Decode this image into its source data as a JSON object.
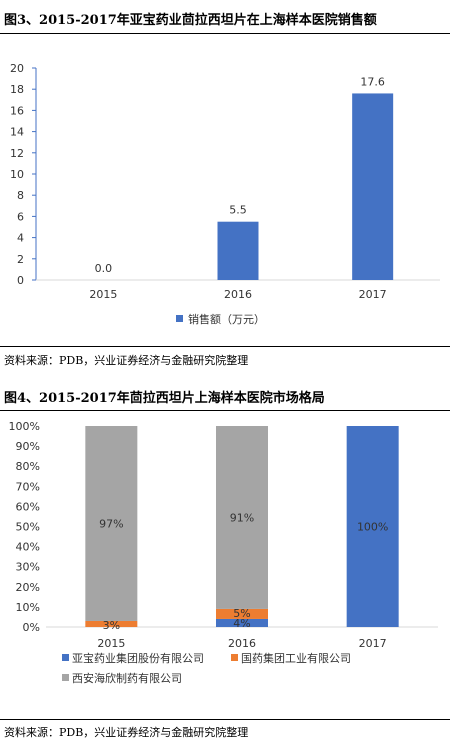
{
  "figure3": {
    "title": "图3、2015-2017年亚宝药业茴拉西坦片在上海样本医院销售额",
    "source": "资料来源：PDB，兴业证券经济与金融研究院整理"
  },
  "figure4": {
    "title": "图4、2015-2017年茴拉西坦片上海样本医院市场格局",
    "source": "资料来源：PDB，兴业证券经济与金融研究院整理"
  },
  "chart_data": [
    {
      "type": "bar",
      "title": "",
      "categories": [
        "2015",
        "2016",
        "2017"
      ],
      "series": [
        {
          "name": "销售额（万元）",
          "values": [
            0.0,
            5.5,
            17.6
          ],
          "color": "#4472C4"
        }
      ],
      "data_labels": [
        "0.0",
        "5.5",
        "17.6"
      ],
      "ylim": [
        0,
        20
      ],
      "yticks": [
        0,
        2,
        4,
        6,
        8,
        10,
        12,
        14,
        16,
        18,
        20
      ],
      "grid": false,
      "legend": "bottom"
    },
    {
      "type": "bar",
      "stacked": true,
      "title": "",
      "categories": [
        "2015",
        "2016",
        "2017"
      ],
      "series": [
        {
          "name": "亚宝药业集团股份有限公司",
          "values": [
            0,
            4,
            100
          ],
          "labels": [
            "",
            "4%",
            "100%"
          ],
          "color": "#4472C4"
        },
        {
          "name": "国药集团工业有限公司",
          "values": [
            3,
            5,
            0
          ],
          "labels": [
            "3%",
            "5%",
            ""
          ],
          "color": "#ED7D31"
        },
        {
          "name": "西安海欣制药有限公司",
          "values": [
            97,
            91,
            0
          ],
          "labels": [
            "97%",
            "91%",
            ""
          ],
          "color": "#A5A5A5"
        }
      ],
      "ylim": [
        0,
        100
      ],
      "yticks": [
        "0%",
        "10%",
        "20%",
        "30%",
        "40%",
        "50%",
        "60%",
        "70%",
        "80%",
        "90%",
        "100%"
      ],
      "grid": false,
      "legend": "bottom"
    }
  ]
}
